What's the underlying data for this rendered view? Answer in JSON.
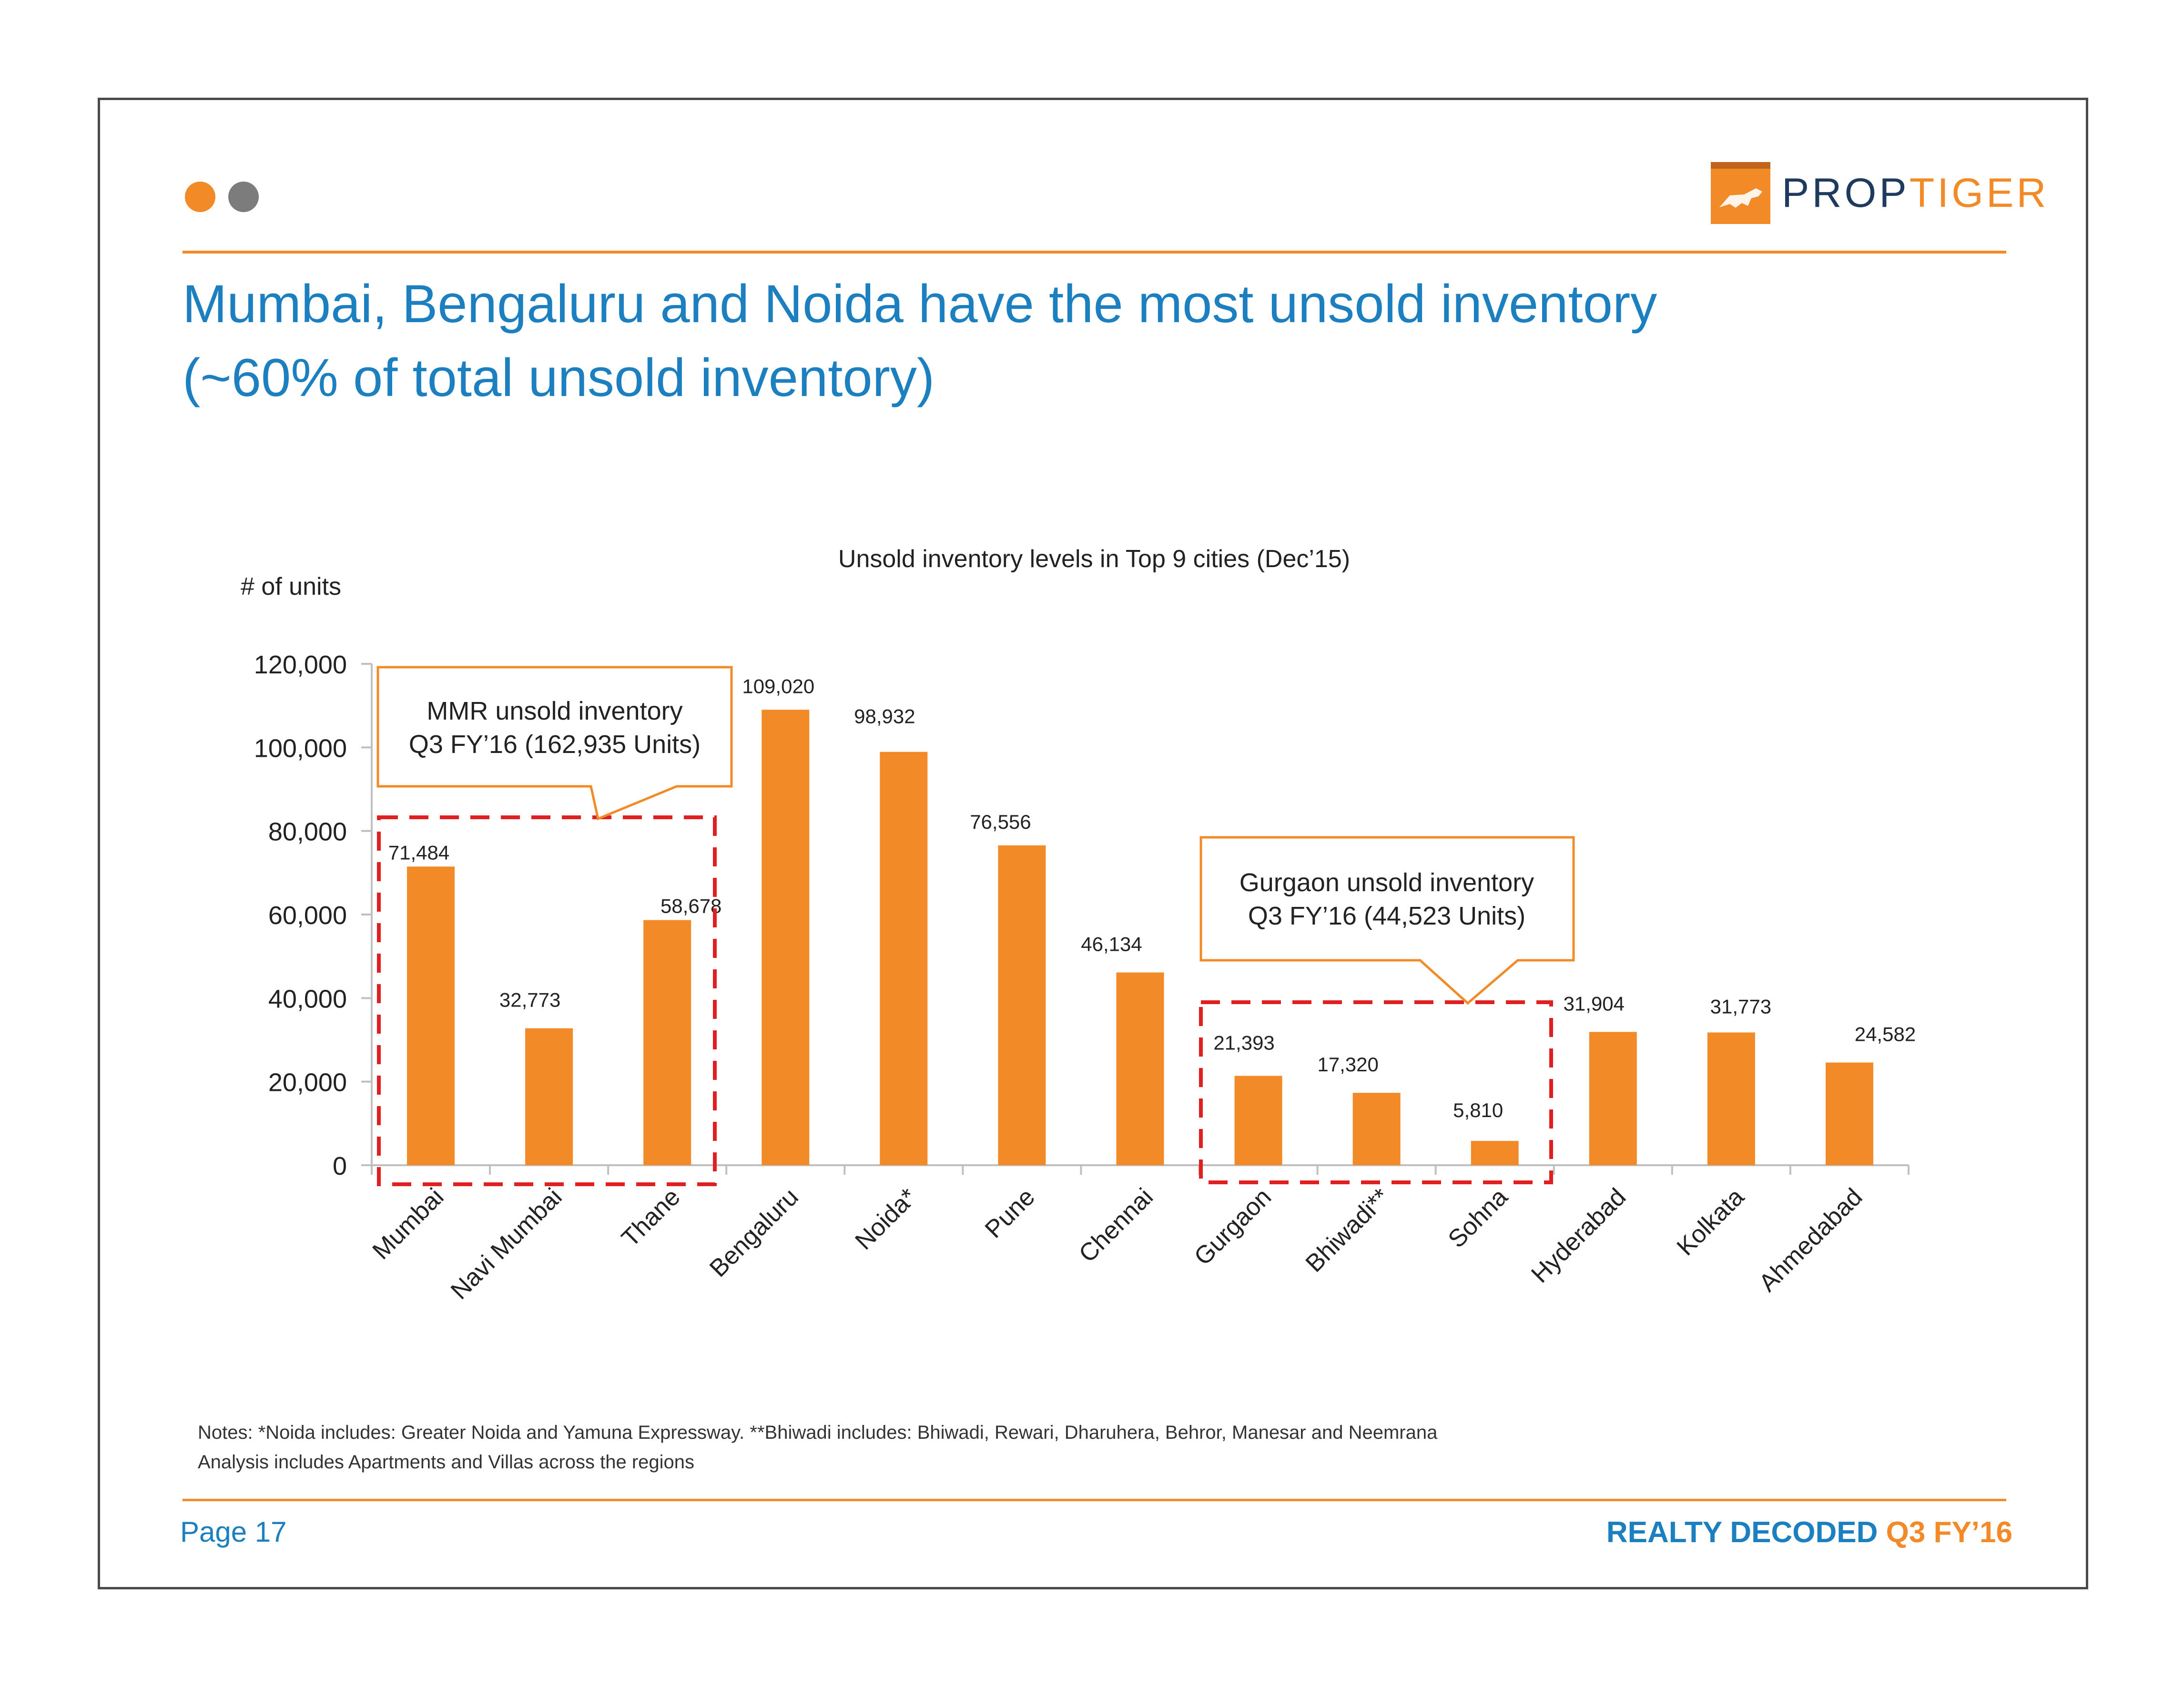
{
  "header": {
    "brand_prefix": "PROP",
    "brand_suffix": "TIGER",
    "title_line1": "Mumbai, Bengaluru and Noida have the most unsold inventory",
    "title_line2": "(~60% of total unsold inventory)"
  },
  "colors": {
    "accent": "#f28a28",
    "title_blue": "#1b7fc0",
    "callout_red": "#e02020",
    "dot_gray": "#7c7c7c"
  },
  "chart_data": {
    "type": "bar",
    "title": "Unsold inventory levels in Top 9 cities (Dec’15)",
    "ylabel": "# of units",
    "xlabel": "",
    "ylim": [
      0,
      120000
    ],
    "yticks": [
      "0",
      "20,000",
      "40,000",
      "60,000",
      "80,000",
      "100,000",
      "120,000"
    ],
    "categories": [
      "Mumbai",
      "Navi Mumbai",
      "Thane",
      "Bengaluru",
      "Noida*",
      "Pune",
      "Chennai",
      "Gurgaon",
      "Bhiwadi**",
      "Sohna",
      "Hyderabad",
      "Kolkata",
      "Ahmedabad"
    ],
    "values": [
      71484,
      32773,
      58678,
      109020,
      98932,
      76556,
      46134,
      21393,
      17320,
      5810,
      31904,
      31773,
      24582
    ],
    "value_labels": [
      "71,484",
      "32,773",
      "58,678",
      "109,020",
      "98,932",
      "76,556",
      "46,134",
      "21,393",
      "17,320",
      "5,810",
      "31,904",
      "31,773",
      "24,582"
    ],
    "annotations": [
      {
        "group": "MMR",
        "line1": "MMR unsold inventory",
        "line2": "Q3 FY’16 (162,935 Units)"
      },
      {
        "group": "Gurgaon",
        "line1": "Gurgaon unsold inventory",
        "line2": "Q3 FY’16 (44,523 Units)"
      }
    ]
  },
  "notes": {
    "line1": "Notes: *Noida includes: Greater Noida and Yamuna Expressway. **Bhiwadi includes: Bhiwadi, Rewari, Dharuhera, Behror, Manesar and Neemrana",
    "line2": "Analysis includes Apartments and Villas across the regions"
  },
  "footer": {
    "page": "Page 17",
    "brand": "REALTY DECODED",
    "edition": "Q3 FY’16"
  }
}
